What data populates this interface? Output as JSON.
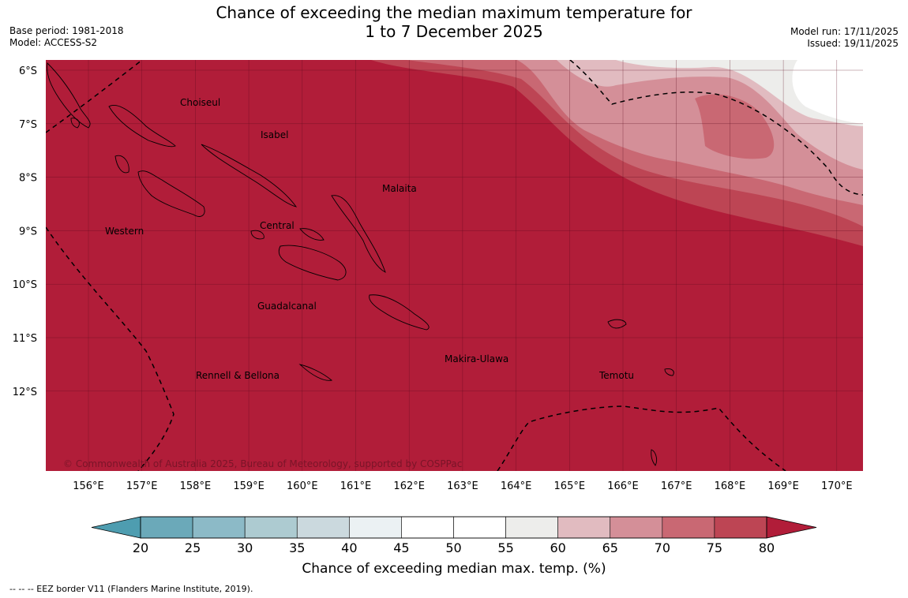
{
  "title": {
    "line1": "Chance of exceeding the median maximum temperature for",
    "line2": "1 to 7 December 2025"
  },
  "meta_left": {
    "base_period": "Base period: 1981-2018",
    "model": "Model: ACCESS-S2"
  },
  "meta_right": {
    "model_run": "Model run: 17/11/2025",
    "issued": "Issued: 19/11/2025"
  },
  "map": {
    "lat_labels": [
      "6°S",
      "7°S",
      "8°S",
      "9°S",
      "10°S",
      "11°S",
      "12°S"
    ],
    "lon_labels": [
      "156°E",
      "157°E",
      "158°E",
      "159°E",
      "160°E",
      "161°E",
      "162°E",
      "163°E",
      "164°E",
      "165°E",
      "166°E",
      "167°E",
      "168°E",
      "169°E",
      "170°E"
    ],
    "provinces": [
      "Choiseul",
      "Isabel",
      "Malaita",
      "Western",
      "Central",
      "Guadalcanal",
      "Makira-Ulawa",
      "Rennell & Bellona",
      "Temotu"
    ],
    "copyright": "© Commonwealth of Australia 2025, Bureau of Meteorology, supported by COSPPac"
  },
  "legend": {
    "tick_labels": [
      "20",
      "25",
      "30",
      "35",
      "40",
      "45",
      "50",
      "55",
      "60",
      "65",
      "70",
      "75",
      "80"
    ],
    "colors": [
      "#4e9db0",
      "#6ba9b9",
      "#8cbac7",
      "#adcbd1",
      "#cbd9de",
      "#ebf1f3",
      "#ffffff",
      "#ffffff",
      "#ededeb",
      "#e1bbc0",
      "#d48f98",
      "#c96873",
      "#bd4554",
      "#b11d39"
    ],
    "label": "Chance of exceeding median max. temp. (%)"
  },
  "footnote": "--  --  -- EEZ border V11 (Flanders Marine Institute, 2019)."
}
